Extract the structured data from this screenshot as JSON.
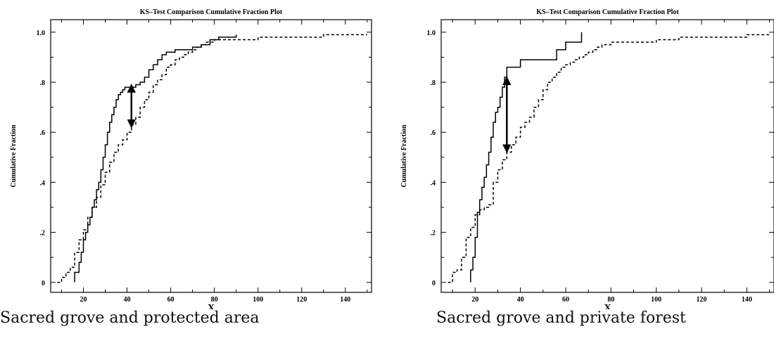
{
  "captions": [
    "Sacred grove and protected area",
    "Sacred grove and private forest"
  ],
  "chart_data": [
    {
      "type": "line",
      "title": "KS–Test Comparison Cumulative Fraction Plot",
      "xlabel": "X",
      "ylabel": "Cumulative Fraction",
      "xlim": [
        5,
        152
      ],
      "ylim": [
        -0.04,
        1.05
      ],
      "xticks": [
        20,
        40,
        60,
        80,
        100,
        120,
        140
      ],
      "xtick_labels": [
        "20",
        "40",
        "60",
        "80",
        "100",
        "120",
        "140"
      ],
      "yticks": [
        0,
        0.2,
        0.4,
        0.6,
        0.8,
        1.0
      ],
      "ytick_labels": [
        "0",
        ".2",
        ".4",
        ".6",
        ".8",
        "1.0"
      ],
      "grid": false,
      "series": [
        {
          "style": "solid",
          "x": [
            16,
            16,
            18,
            19,
            20,
            21,
            22,
            23,
            24,
            25,
            26,
            27,
            28,
            29,
            30,
            31,
            32,
            33,
            34,
            35,
            36,
            37,
            38,
            39,
            40,
            42,
            44,
            46,
            48,
            50,
            52,
            54,
            56,
            58,
            62,
            66,
            70,
            74,
            78,
            82,
            86,
            90
          ],
          "y": [
            0,
            0.04,
            0.08,
            0.12,
            0.17,
            0.2,
            0.23,
            0.26,
            0.3,
            0.33,
            0.37,
            0.4,
            0.45,
            0.5,
            0.55,
            0.6,
            0.64,
            0.67,
            0.7,
            0.73,
            0.75,
            0.76,
            0.77,
            0.78,
            0.78,
            0.78,
            0.79,
            0.8,
            0.82,
            0.85,
            0.87,
            0.89,
            0.91,
            0.92,
            0.93,
            0.93,
            0.94,
            0.95,
            0.97,
            0.98,
            0.98,
            0.99
          ]
        },
        {
          "style": "dashed",
          "x": [
            8,
            10,
            12,
            14,
            16,
            18,
            20,
            22,
            24,
            26,
            28,
            30,
            32,
            34,
            36,
            38,
            40,
            42,
            44,
            46,
            48,
            50,
            52,
            54,
            56,
            58,
            60,
            62,
            64,
            66,
            68,
            70,
            72,
            74,
            76,
            78,
            80,
            85,
            90,
            100,
            110,
            120,
            130,
            140,
            150
          ],
          "y": [
            0,
            0.02,
            0.04,
            0.06,
            0.12,
            0.17,
            0.21,
            0.26,
            0.3,
            0.34,
            0.39,
            0.44,
            0.48,
            0.52,
            0.55,
            0.57,
            0.6,
            0.63,
            0.66,
            0.7,
            0.73,
            0.76,
            0.79,
            0.81,
            0.83,
            0.86,
            0.87,
            0.89,
            0.9,
            0.91,
            0.92,
            0.93,
            0.94,
            0.95,
            0.96,
            0.96,
            0.97,
            0.97,
            0.97,
            0.98,
            0.98,
            0.98,
            0.99,
            0.99,
            0.99
          ]
        }
      ],
      "arrow": {
        "x": 42,
        "y_top": 0.79,
        "y_bottom": 0.62
      }
    },
    {
      "type": "line",
      "title": "KS–Test Comparison Cumulative Fraction Plot",
      "xlabel": "X",
      "ylabel": "Cumulative Fraction",
      "xlim": [
        5,
        152
      ],
      "ylim": [
        -0.04,
        1.05
      ],
      "xticks": [
        20,
        40,
        60,
        80,
        100,
        120,
        140
      ],
      "xtick_labels": [
        "20",
        "40",
        "60",
        "80",
        "100",
        "120",
        "140"
      ],
      "yticks": [
        0,
        0.2,
        0.4,
        0.6,
        0.8,
        1.0
      ],
      "ytick_labels": [
        "0",
        ".2",
        ".4",
        ".6",
        ".8",
        "1.0"
      ],
      "grid": false,
      "series": [
        {
          "style": "solid",
          "x": [
            18,
            18,
            19,
            20,
            21,
            22,
            23,
            24,
            25,
            26,
            27,
            28,
            29,
            30,
            31,
            32,
            33,
            34,
            36,
            40,
            44,
            48,
            52,
            56,
            60,
            64,
            66,
            67
          ],
          "y": [
            0,
            0.05,
            0.1,
            0.18,
            0.28,
            0.33,
            0.38,
            0.42,
            0.47,
            0.52,
            0.58,
            0.64,
            0.68,
            0.7,
            0.74,
            0.78,
            0.82,
            0.86,
            0.86,
            0.89,
            0.89,
            0.89,
            0.89,
            0.93,
            0.96,
            0.96,
            0.96,
            1.0
          ]
        },
        {
          "style": "dashed",
          "x": [
            8,
            10,
            12,
            14,
            16,
            18,
            20,
            22,
            24,
            26,
            28,
            30,
            32,
            34,
            36,
            38,
            40,
            42,
            44,
            46,
            48,
            50,
            52,
            54,
            56,
            58,
            60,
            62,
            64,
            66,
            68,
            70,
            72,
            74,
            76,
            80,
            90,
            100,
            110,
            120,
            130,
            140,
            150
          ],
          "y": [
            0,
            0.04,
            0.05,
            0.1,
            0.18,
            0.22,
            0.27,
            0.29,
            0.3,
            0.31,
            0.4,
            0.45,
            0.49,
            0.52,
            0.55,
            0.58,
            0.62,
            0.64,
            0.66,
            0.7,
            0.73,
            0.77,
            0.8,
            0.82,
            0.84,
            0.86,
            0.87,
            0.88,
            0.89,
            0.9,
            0.91,
            0.92,
            0.93,
            0.94,
            0.95,
            0.96,
            0.96,
            0.97,
            0.98,
            0.98,
            0.98,
            0.99,
            0.99
          ]
        }
      ],
      "arrow": {
        "x": 34,
        "y_top": 0.82,
        "y_bottom": 0.52
      }
    }
  ]
}
